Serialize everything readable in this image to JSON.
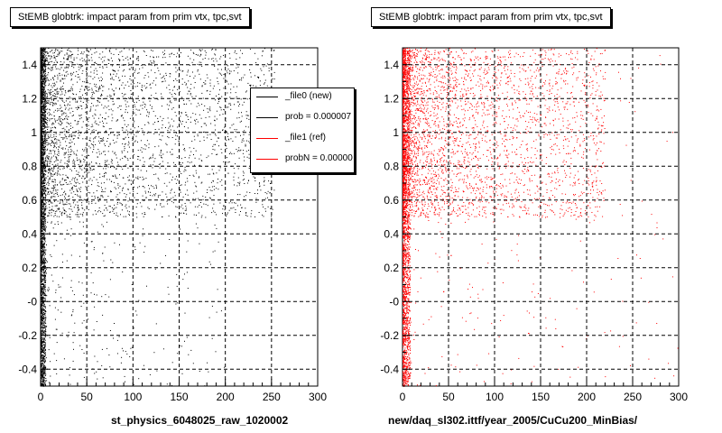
{
  "chart_data": [
    {
      "type": "scatter",
      "title": "StEMB globtrk: impact param from prim vtx, tpc,svt",
      "xlabel": "st_physics_6048025_raw_1020002",
      "ylabel": "",
      "xlim": [
        0,
        300
      ],
      "ylim": [
        -0.5,
        1.5
      ],
      "x_ticks": [
        "0",
        "50",
        "100",
        "150",
        "200",
        "250",
        "300"
      ],
      "y_ticks": [
        "-0.4",
        "-0.2",
        "-0",
        "0.2",
        "0.4",
        "0.6",
        "0.8",
        "1",
        "1.2",
        "1.4"
      ],
      "grid": true,
      "series": [
        {
          "name": "_file0 (new)",
          "color": "#000000",
          "dense_band": {
            "x": [
              0,
              5
            ],
            "y": [
              -0.5,
              1.5
            ]
          },
          "main_cluster": {
            "x": [
              0,
              230
            ],
            "y": [
              0.5,
              1.5
            ]
          },
          "sparse": {
            "x": [
              5,
              200
            ],
            "y": [
              -0.5,
              0.5
            ]
          }
        }
      ],
      "legend": {
        "position": "top-right",
        "entries": [
          {
            "label": "_file0 (new)",
            "color": "#000000"
          },
          {
            "label": "prob = 0.000007",
            "color": "#000000"
          },
          {
            "label": "_file1 (ref)",
            "color": "#ff0000"
          },
          {
            "label": "probN = 0.00000",
            "color": "#ff0000"
          }
        ]
      }
    },
    {
      "type": "scatter",
      "title": "StEMB globtrk: impact param from prim vtx, tpc,svt",
      "xlabel": "new/daq_sl302.ittf/year_2005/CuCu200_MinBias/",
      "ylabel": "",
      "xlim": [
        0,
        300
      ],
      "ylim": [
        -0.5,
        1.5
      ],
      "x_ticks": [
        "0",
        "50",
        "100",
        "150",
        "200",
        "250",
        "300"
      ],
      "y_ticks": [
        "-0.4",
        "-0.2",
        "-0",
        "0.2",
        "0.4",
        "0.6",
        "0.8",
        "1",
        "1.2",
        "1.4"
      ],
      "grid": true,
      "series": [
        {
          "name": "_file1 (ref)",
          "color": "#ff0000",
          "dense_band": {
            "x": [
              0,
              8
            ],
            "y": [
              -0.5,
              1.5
            ]
          },
          "main_cluster": {
            "x": [
              0,
              200
            ],
            "y": [
              0.5,
              1.5
            ]
          },
          "sparse": {
            "x": [
              8,
              300
            ],
            "y": [
              -0.5,
              1.5
            ]
          }
        }
      ]
    }
  ]
}
